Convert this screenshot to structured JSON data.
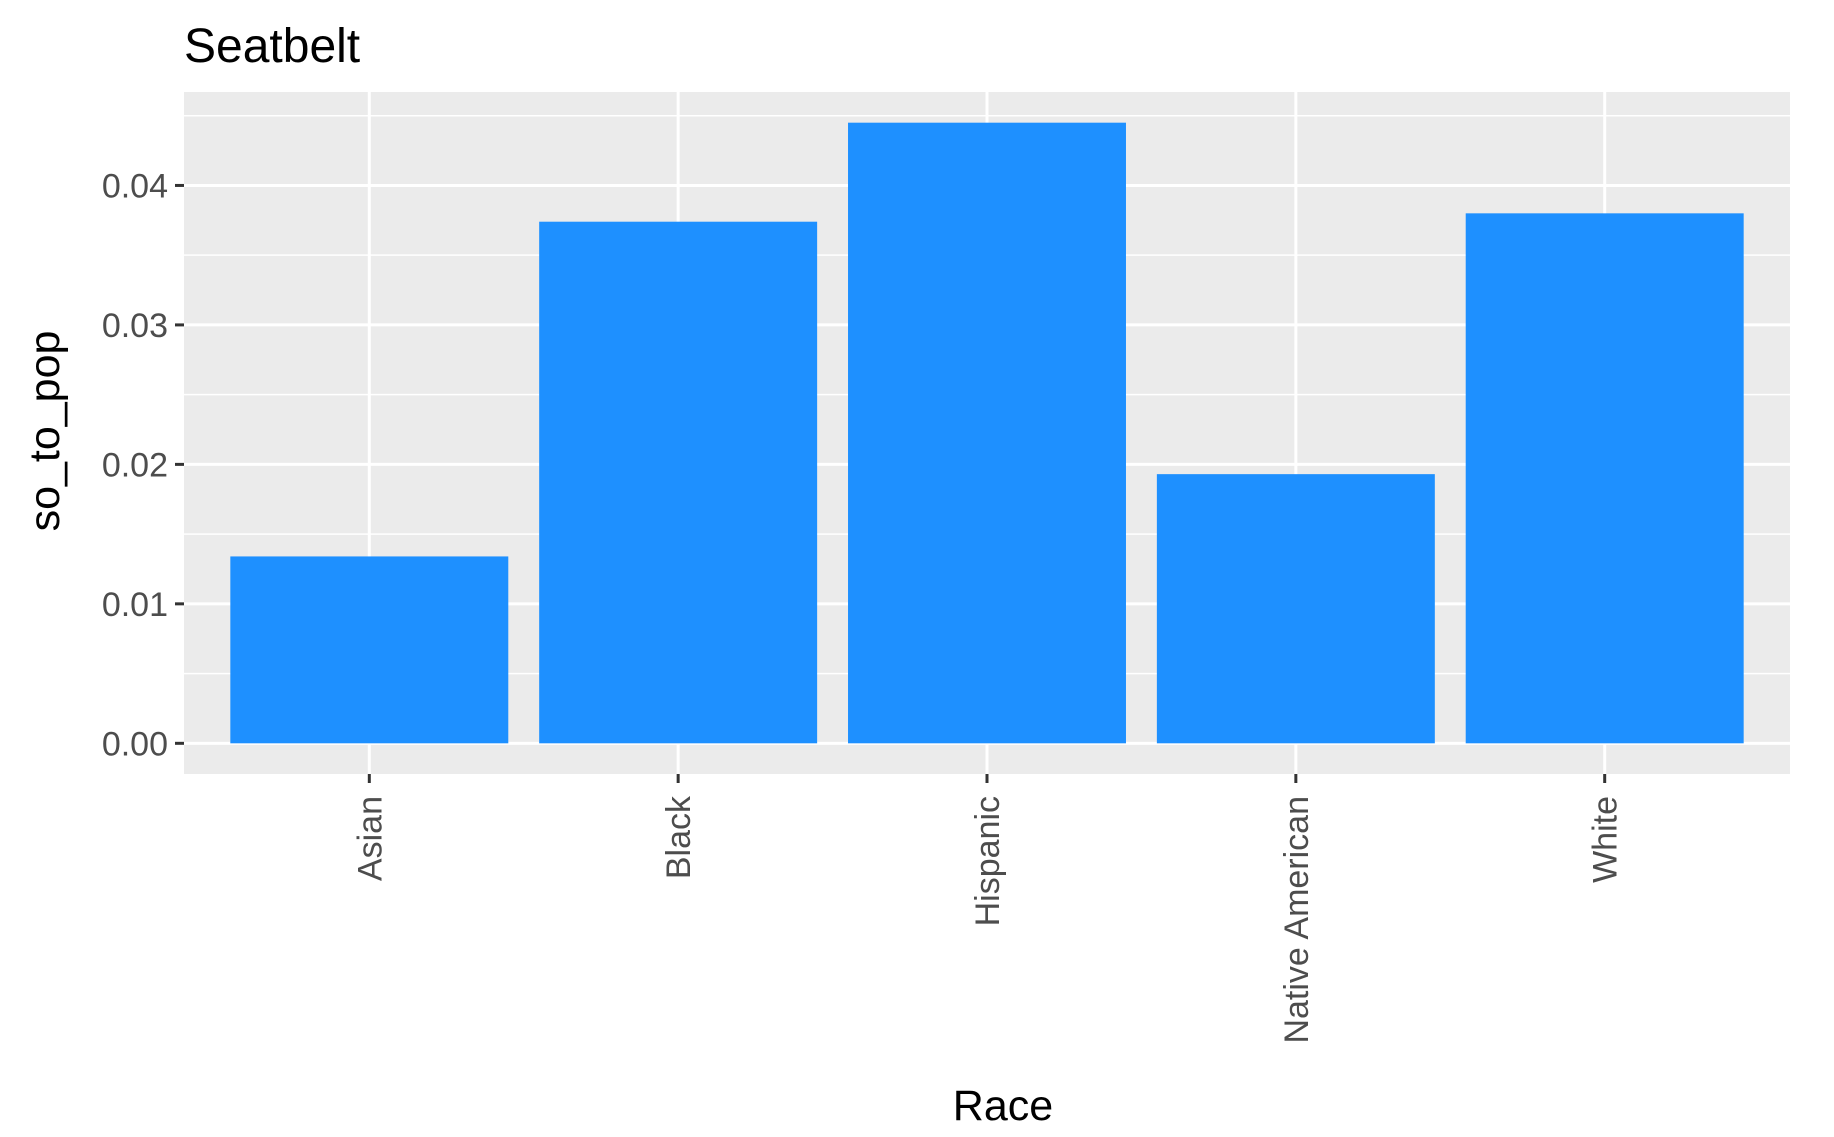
{
  "chart_data": {
    "type": "bar",
    "title": "Seatbelt",
    "xlabel": "Race",
    "ylabel": "so_to_pop",
    "categories": [
      "Asian",
      "Black",
      "Hispanic",
      "Native American",
      "White"
    ],
    "values": [
      0.0134,
      0.0374,
      0.0445,
      0.0193,
      0.038
    ],
    "ylim": [
      -0.0022,
      0.0467
    ],
    "yticks": [
      0.0,
      0.01,
      0.02,
      0.03,
      0.04
    ],
    "ytick_labels": [
      "0.00",
      "0.01",
      "0.02",
      "0.03",
      "0.04"
    ],
    "grid": true,
    "legend": "none",
    "colors": {
      "bar": "#1E90FF",
      "panel": "#EBEBEB",
      "grid": "#FFFFFF",
      "tick_text": "#4D4D4D",
      "tick_mark": "#333333"
    }
  }
}
